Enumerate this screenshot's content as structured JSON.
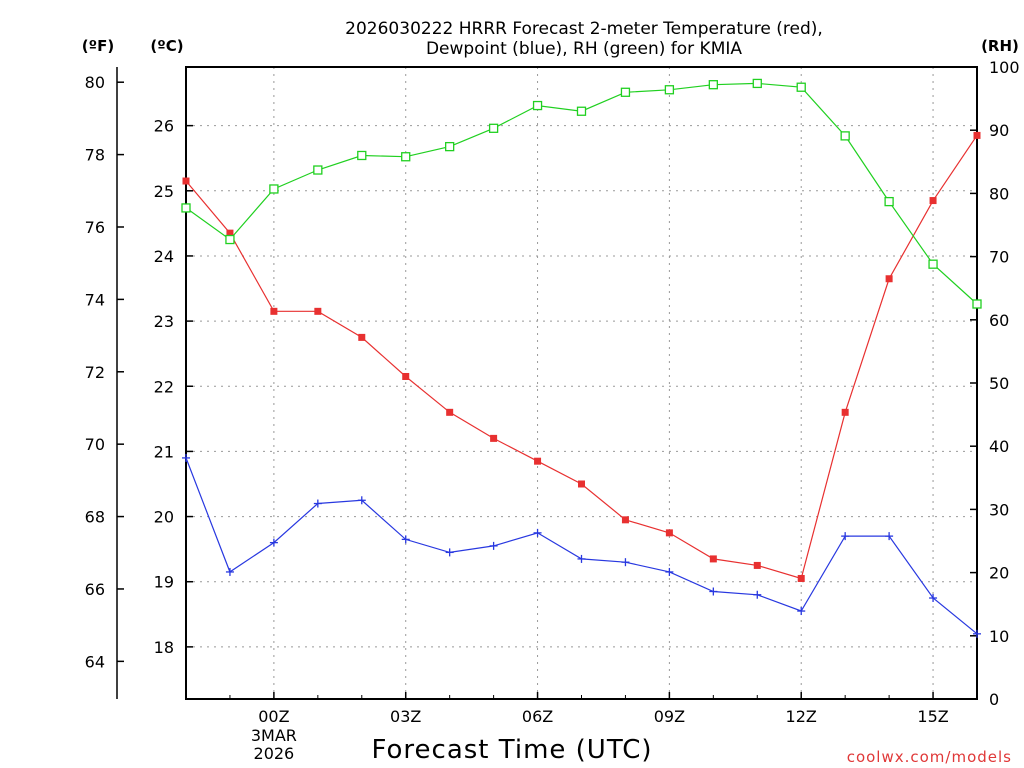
{
  "chart_data": {
    "type": "line",
    "title_line1": "2026030222 HRRR Forecast 2-meter Temperature (red),",
    "title_line2": "Dewpoint (blue), RH (green) for KMIA",
    "xlabel": "Forecast Time (UTC)",
    "credit": "coolwx.com/models",
    "units": {
      "fahrenheit": "(ºF)",
      "celsius": "(ºC)",
      "rh": "(RH)"
    },
    "x_range_hours": [
      -2,
      16
    ],
    "x_ticks": [
      {
        "hour": 0,
        "label": "00Z",
        "sub1": "3MAR",
        "sub2": "2026"
      },
      {
        "hour": 3,
        "label": "03Z"
      },
      {
        "hour": 6,
        "label": "06Z"
      },
      {
        "hour": 9,
        "label": "09Z"
      },
      {
        "hour": 12,
        "label": "12Z"
      },
      {
        "hour": 15,
        "label": "15Z"
      }
    ],
    "celsius_axis": {
      "range": [
        17.2,
        26.9
      ],
      "ticks": [
        "18",
        "19",
        "20",
        "21",
        "22",
        "23",
        "24",
        "25",
        "26"
      ]
    },
    "fahrenheit_axis": {
      "ticks": [
        "64",
        "66",
        "68",
        "70",
        "72",
        "74",
        "76",
        "78",
        "80"
      ]
    },
    "rh_axis": {
      "range": [
        0,
        100
      ],
      "ticks": [
        "0",
        "10",
        "20",
        "30",
        "40",
        "50",
        "60",
        "70",
        "80",
        "90",
        "100"
      ]
    },
    "series": [
      {
        "name": "Temperature",
        "units": "C",
        "color": "#e83030",
        "marker": "filled-square",
        "hours": [
          -2,
          -1,
          0,
          1,
          2,
          3,
          4,
          5,
          6,
          7,
          8,
          9,
          10,
          11,
          12,
          13,
          14,
          15,
          16
        ],
        "values": [
          25.15,
          24.35,
          23.15,
          23.15,
          22.75,
          22.15,
          21.6,
          21.2,
          20.85,
          20.5,
          19.95,
          19.75,
          19.35,
          19.25,
          19.05,
          21.6,
          23.65,
          24.85,
          25.85
        ]
      },
      {
        "name": "Dewpoint",
        "units": "C",
        "color": "#2838e0",
        "marker": "plus",
        "hours": [
          -2,
          -1,
          0,
          1,
          2,
          3,
          4,
          5,
          6,
          7,
          8,
          9,
          10,
          11,
          12,
          13,
          14,
          15,
          16
        ],
        "values": [
          20.9,
          19.15,
          19.6,
          20.2,
          20.25,
          19.65,
          19.45,
          19.55,
          19.75,
          19.35,
          19.3,
          19.15,
          18.85,
          18.8,
          18.55,
          19.7,
          19.7,
          18.75,
          18.2
        ]
      },
      {
        "name": "RH",
        "units": "%",
        "color": "#20d020",
        "marker": "open-square",
        "hours": [
          -2,
          -1,
          0,
          1,
          2,
          3,
          4,
          5,
          6,
          7,
          8,
          9,
          10,
          11,
          12,
          13,
          14,
          15,
          16
        ],
        "values": [
          77.7,
          72.7,
          80.7,
          83.7,
          86.0,
          85.8,
          87.4,
          90.3,
          93.9,
          93.0,
          96.0,
          96.4,
          97.2,
          97.4,
          96.8,
          89.1,
          78.7,
          68.8,
          62.5
        ]
      }
    ]
  }
}
